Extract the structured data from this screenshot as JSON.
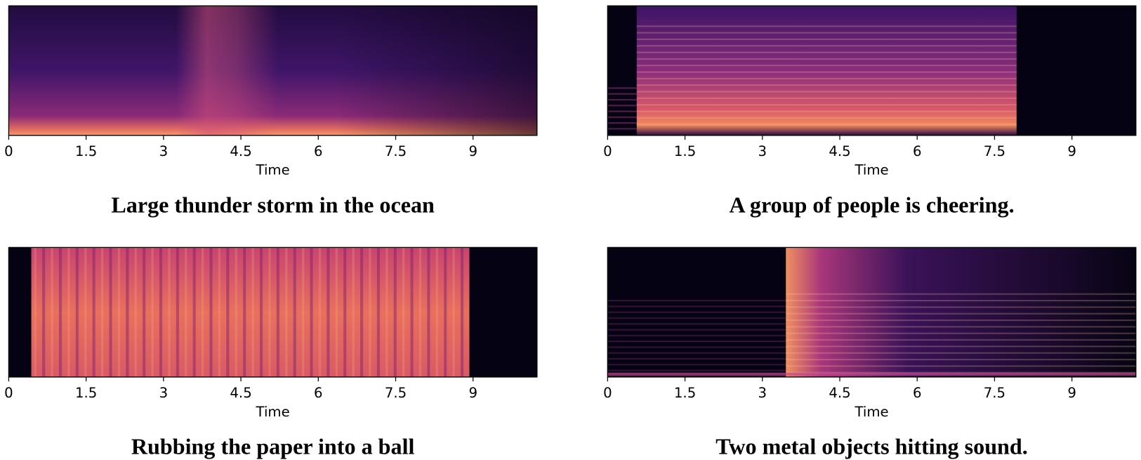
{
  "chart_data": [
    {
      "type": "spectrogram",
      "title": "Large thunder storm in the ocean",
      "xlabel": "Time",
      "xlim": [
        0,
        10.24
      ],
      "xticks": [
        0,
        1.5,
        3,
        4.5,
        6,
        7.5,
        9
      ]
    },
    {
      "type": "spectrogram",
      "title": "A group of people is cheering.",
      "xlabel": "Time",
      "xlim": [
        0,
        10.24
      ],
      "xticks": [
        0,
        1.5,
        3,
        4.5,
        6,
        7.5,
        9
      ]
    },
    {
      "type": "spectrogram",
      "title": "Rubbing the paper into a ball",
      "xlabel": "Time",
      "xlim": [
        0,
        10.24
      ],
      "xticks": [
        0,
        1.5,
        3,
        4.5,
        6,
        7.5,
        9
      ]
    },
    {
      "type": "spectrogram",
      "title": "Two metal objects hitting sound.",
      "xlabel": "Time",
      "xlim": [
        0,
        10.24
      ],
      "xticks": [
        0,
        1.5,
        3,
        4.5,
        6,
        7.5,
        9
      ]
    }
  ]
}
